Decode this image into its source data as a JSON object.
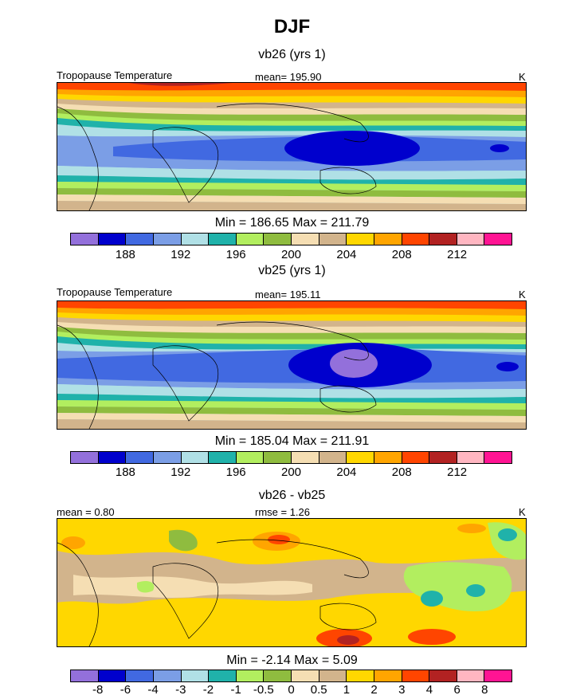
{
  "chart_data": {
    "type": "heatmap",
    "title": "DJF",
    "palette_abs": [
      "#9370db",
      "#0000cd",
      "#4169e1",
      "#7b9ee6",
      "#b0e0e6",
      "#20b2aa",
      "#b2ee5f",
      "#8fbc3f",
      "#f5deb3",
      "#d2b48c",
      "#ffd700",
      "#ffa500",
      "#ff4500",
      "#b22222",
      "#ffb6c1",
      "#ff1493"
    ],
    "palette_diff": [
      "#9370db",
      "#0000cd",
      "#4169e1",
      "#7b9ee6",
      "#b0e0e6",
      "#20b2aa",
      "#b2ee5f",
      "#8fbc3f",
      "#f5deb3",
      "#d2b48c",
      "#ffd700",
      "#ffa500",
      "#ff4500",
      "#b22222",
      "#ffb6c1",
      "#ff1493"
    ],
    "panels": [
      {
        "subtitle": "vb26 (yrs 1)",
        "left_label": "Tropopause Temperature",
        "center_label": "mean= 195.90",
        "right_label": "K",
        "minmax": "Min = 186.65 Max = 211.79",
        "mean": 195.9,
        "min": 186.65,
        "max": 211.79,
        "colorbar_ticks": [
          "188",
          "192",
          "196",
          "200",
          "204",
          "208",
          "212"
        ]
      },
      {
        "subtitle": "vb25 (yrs 1)",
        "left_label": "Tropopause Temperature",
        "center_label": "mean= 195.11",
        "right_label": "K",
        "minmax": "Min = 185.04 Max = 211.91",
        "mean": 195.11,
        "min": 185.04,
        "max": 211.91,
        "colorbar_ticks": [
          "188",
          "192",
          "196",
          "200",
          "204",
          "208",
          "212"
        ]
      },
      {
        "subtitle": "vb26 - vb25",
        "left_label": "mean =   0.80",
        "center_label": "rmse =   1.26",
        "right_label": "K",
        "minmax": "Min =  -2.14 Max =   5.09",
        "mean": 0.8,
        "rmse": 1.26,
        "min": -2.14,
        "max": 5.09,
        "colorbar_ticks": [
          "-8",
          "-6",
          "-4",
          "-3",
          "-2",
          "-1",
          "-0.5",
          "0",
          "0.5",
          "1",
          "2",
          "3",
          "4",
          "6",
          "8"
        ]
      }
    ]
  }
}
